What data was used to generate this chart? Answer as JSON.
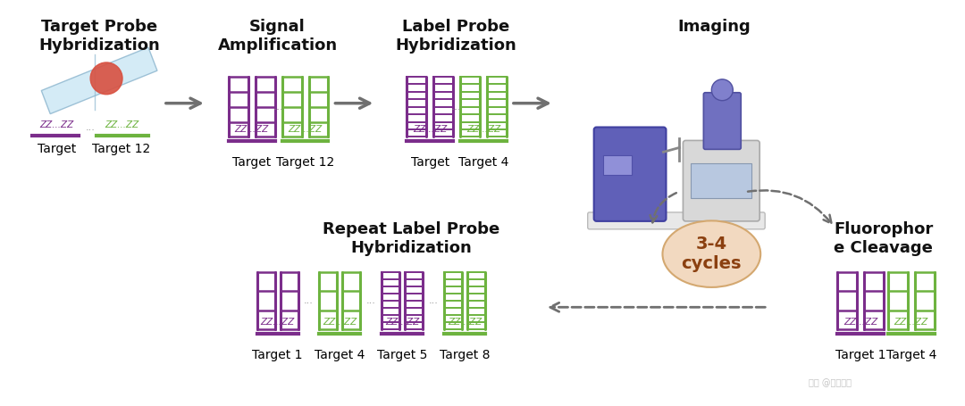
{
  "bg_color": "#ffffff",
  "title_color": "#111111",
  "purple": "#7B2D8B",
  "green": "#6DB33F",
  "arrow_color": "#707070",
  "cycle_fill": "#F2D9C0",
  "cycle_edge": "#d4a870",
  "cycle_text": "3-4\ncycles",
  "step1_title": "Target Probe\nHybridization",
  "step2_title": "Signal\nAmplification",
  "step3_title": "Label Probe\nHybridization",
  "step4_title": "Imaging",
  "step5_title": "Repeat Label Probe\nHybridization",
  "step6_title": "Fluorophor\ne Cleavage",
  "step1_labels": [
    "Target",
    "Target 12"
  ],
  "step2_labels": [
    "Target",
    "Target 12"
  ],
  "step3_labels": [
    "Target",
    "Target 4"
  ],
  "step5_labels": [
    "Target 1",
    "Target 4",
    "Target 5",
    "Target 8"
  ],
  "step6_labels": [
    "Target 1",
    "Target 4"
  ],
  "title_fontsize": 13,
  "label_fontsize": 10
}
